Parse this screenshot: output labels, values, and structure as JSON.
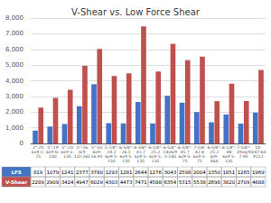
{
  "chart_data": {
    "type": "bar",
    "title": "V-Shear vs. Low Force Shear",
    "categories": [
      "3\"-20\n6x9 C-\n75",
      "5\"-19\n6x9 G-\n100",
      "5\"-20\n6x9 S-\n135",
      "5\"-26\n6/9\n1/D-265",
      "5\"-50\n6x9-\n16.95",
      "5-7/8\"-\n24.2\n6x9 S-\n150",
      "6-5/8\"-\n26.1\n6x9 S-\n135",
      "6-3/8\"-\n41.7\n6x9 S-\n135",
      "6-1/8\"-\n25.2\n6x9 S-\n135",
      "6-5/8\"-\n14x6/9\n2-140",
      "6-5/8\"-\n45.7\n6x9 S-\n75",
      "7-5/8-\n42.8\n6x9 S-\n75",
      "6-5/8\"-\n25.2\n6/9-\n464",
      "6-1/8\"-\n48\n6x9 S-\n135",
      "7-5/8\"-\n39x6/9\n7-95",
      "10-\n3/47-60\nP212"
    ],
    "series": [
      {
        "name": "LFS",
        "color": "#4472c4",
        "values": [
          819,
          1079,
          1241,
          2377,
          3780,
          1293,
          1281,
          2644,
          1276,
          3043,
          2598,
          2004,
          1350,
          1851,
          1265,
          1969
        ]
      },
      {
        "name": "V-Shear",
        "color": "#c0504d",
        "values": [
          2289,
          2909,
          3424,
          4947,
          6029,
          4303,
          4473,
          7471,
          4588,
          6354,
          5315,
          5538,
          2698,
          3820,
          2709,
          4688
        ]
      }
    ],
    "ylim": [
      0,
      8000
    ],
    "yticks": [
      0,
      {
        "value": 1000,
        "label": "1,000"
      },
      {
        "value": 2000,
        "label": "2,000"
      },
      {
        "value": 3000,
        "label": "3,000"
      },
      {
        "value": 4000,
        "label": "4,000"
      },
      {
        "value": 5000,
        "label": "5,000"
      },
      {
        "value": 6000,
        "label": "6,000"
      },
      {
        "value": 7000,
        "label": "7,000"
      },
      {
        "value": 8000,
        "label": "8,000"
      }
    ],
    "grid": true
  }
}
